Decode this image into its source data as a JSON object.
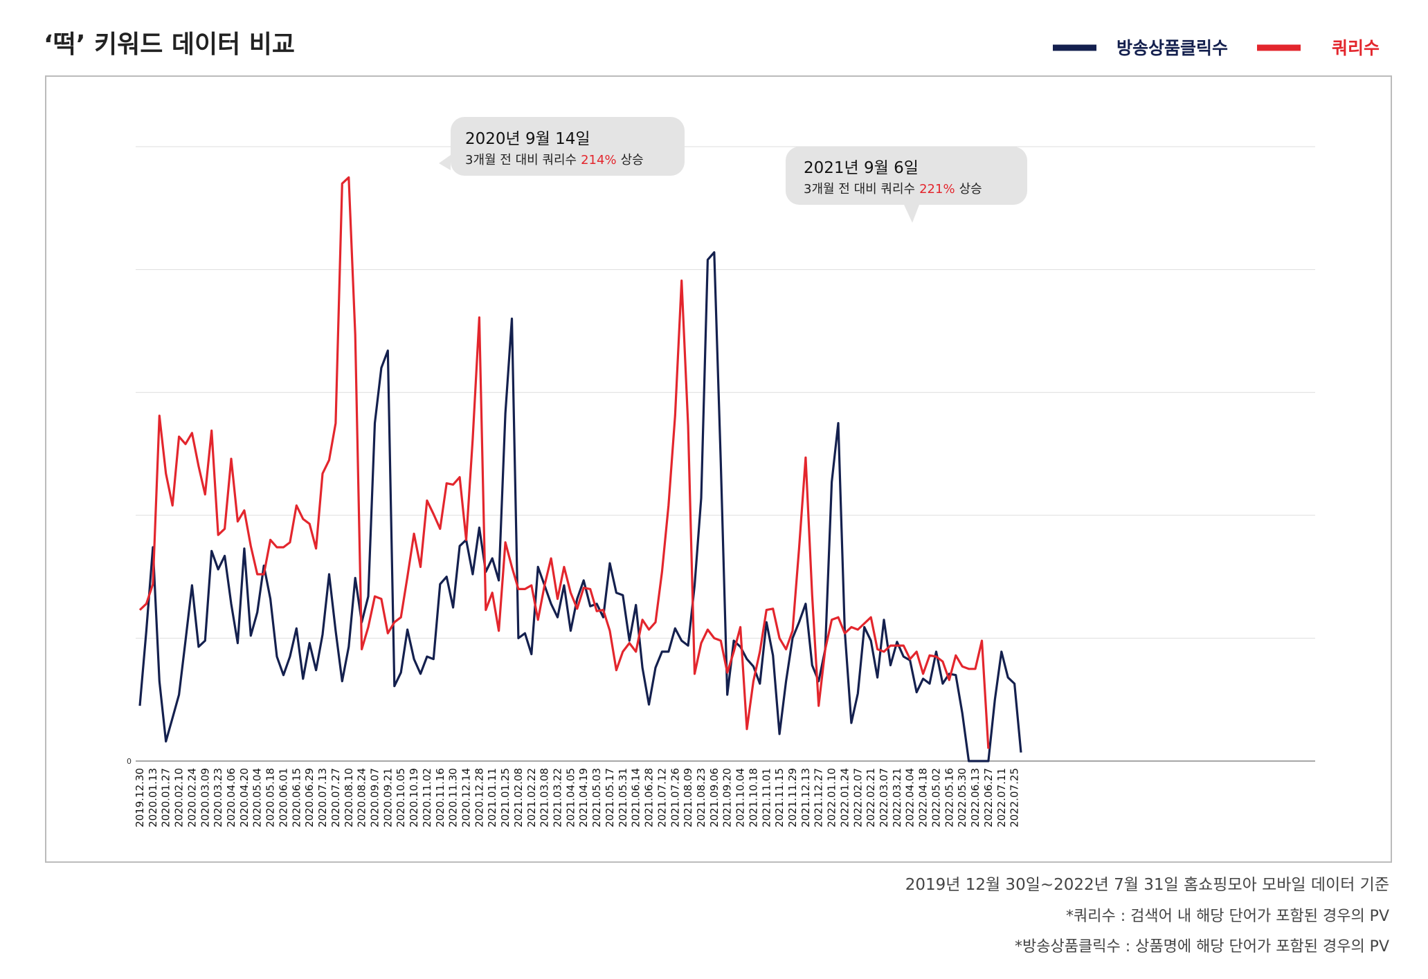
{
  "chart_data": {
    "type": "line",
    "title": "‘떡’ 키워드 데이터 비교",
    "categories": [
      "2019.12.30",
      null,
      "2020.01.13",
      null,
      "2020.01.27",
      null,
      "2020.02.10",
      null,
      "2020.02.24",
      null,
      "2020.03.09",
      null,
      "2020.03.23",
      null,
      "2020.04.06",
      null,
      "2020.04.20",
      null,
      "2020.05.04",
      null,
      "2020.05.18",
      null,
      "2020.06.01",
      null,
      "2020.06.15",
      null,
      "2020.06.29",
      null,
      "2020.07.13",
      null,
      "2020.07.27",
      null,
      "2020.08.10",
      null,
      "2020.08.24",
      null,
      "2020.09.07",
      null,
      "2020.09.21",
      null,
      "2020.10.05",
      null,
      "2020.10.19",
      null,
      "2020.11.02",
      null,
      "2020.11.16",
      null,
      "2020.11.30",
      null,
      "2020.12.14",
      null,
      "2020.12.28",
      null,
      "2021.01.11",
      null,
      "2021.01.25",
      null,
      "2021.02.08",
      null,
      "2021.02.22",
      null,
      "2021.03.08",
      null,
      "2021.03.22",
      null,
      "2021.04.05",
      null,
      "2021.04.19",
      null,
      "2021.05.03",
      null,
      "2021.05.17",
      null,
      "2021.05.31",
      null,
      "2021.06.14",
      null,
      "2021.06.28",
      null,
      "2021.07.12",
      null,
      "2021.07.26",
      null,
      "2021.08.09",
      null,
      "2021.08.23",
      null,
      "2021.09.06",
      null,
      "2021.09.20",
      null,
      "2021.10.04",
      null,
      "2021.10.18",
      null,
      "2021.11.01",
      null,
      "2021.11.15",
      null,
      "2021.11.29",
      null,
      "2021.12.13",
      null,
      "2021.12.27",
      null,
      "2022.01.10",
      null,
      "2022.01.24",
      null,
      "2022.02.07",
      null,
      "2022.02.21",
      null,
      "2022.03.07",
      null,
      "2022.03.21",
      null,
      "2022.04.04",
      null,
      "2022.04.18",
      null,
      "2022.05.02",
      null,
      "2022.05.16",
      null,
      "2022.05.30",
      null,
      "2022.06.13",
      null,
      "2022.06.27",
      null,
      "2022.07.11",
      null,
      "2022.07.25",
      null
    ],
    "series": [
      {
        "name": "방송상품클릭수",
        "color": "#14204e",
        "values": [
          0.45,
          1.06,
          1.74,
          0.65,
          0.16,
          0.35,
          0.54,
          0.98,
          1.43,
          0.93,
          0.98,
          1.71,
          1.56,
          1.67,
          1.28,
          0.96,
          1.73,
          1.02,
          1.21,
          1.59,
          1.32,
          0.85,
          0.7,
          0.85,
          1.08,
          0.67,
          0.96,
          0.74,
          1.03,
          1.52,
          1.06,
          0.65,
          0.93,
          1.49,
          1.13,
          1.34,
          2.75,
          3.2,
          3.34,
          0.61,
          0.72,
          1.07,
          0.83,
          0.71,
          0.85,
          0.83,
          1.44,
          1.5,
          1.25,
          1.75,
          1.8,
          1.52,
          1.9,
          1.54,
          1.65,
          1.47,
          2.83,
          3.6,
          1.0,
          1.04,
          0.87,
          1.58,
          1.43,
          1.28,
          1.17,
          1.43,
          1.06,
          1.32,
          1.47,
          1.26,
          1.28,
          1.17,
          1.61,
          1.37,
          1.35,
          0.98,
          1.27,
          0.76,
          0.46,
          0.76,
          0.89,
          0.89,
          1.08,
          0.98,
          0.94,
          1.43,
          2.14,
          4.08,
          4.14,
          2.43,
          0.54,
          0.98,
          0.93,
          0.83,
          0.77,
          0.63,
          1.13,
          0.86,
          0.22,
          0.65,
          1.0,
          1.13,
          1.28,
          0.78,
          0.65,
          0.91,
          2.27,
          2.75,
          1.06,
          0.31,
          0.55,
          1.09,
          0.98,
          0.68,
          1.15,
          0.78,
          0.97,
          0.85,
          0.82,
          0.56,
          0.67,
          0.63,
          0.89,
          0.63,
          0.71,
          0.7,
          0.39,
          0,
          0,
          0,
          0,
          0.5,
          0.89,
          0.68,
          0.63,
          0.07
        ]
      },
      {
        "name": "쿼리수",
        "color": "#e3262d",
        "values": [
          1.23,
          1.28,
          1.44,
          2.81,
          2.34,
          2.08,
          2.64,
          2.58,
          2.67,
          2.4,
          2.17,
          2.69,
          1.84,
          1.89,
          2.46,
          1.95,
          2.04,
          1.75,
          1.52,
          1.52,
          1.8,
          1.74,
          1.74,
          1.78,
          2.08,
          1.97,
          1.93,
          1.73,
          2.34,
          2.45,
          2.75,
          4.7,
          4.75,
          3.47,
          0.91,
          1.09,
          1.34,
          1.32,
          1.04,
          1.13,
          1.17,
          1.5,
          1.85,
          1.58,
          2.12,
          2.01,
          1.89,
          2.26,
          2.25,
          2.31,
          1.8,
          2.62,
          3.61,
          1.23,
          1.37,
          1.06,
          1.78,
          1.58,
          1.4,
          1.4,
          1.43,
          1.15,
          1.43,
          1.65,
          1.32,
          1.58,
          1.37,
          1.24,
          1.41,
          1.4,
          1.22,
          1.23,
          1.06,
          0.74,
          0.89,
          0.96,
          0.89,
          1.15,
          1.07,
          1.13,
          1.54,
          2.08,
          2.81,
          3.91,
          2.73,
          0.71,
          0.96,
          1.07,
          1.0,
          0.98,
          0.72,
          0.89,
          1.09,
          0.26,
          0.65,
          0.89,
          1.23,
          1.24,
          1.0,
          0.91,
          1.06,
          1.73,
          2.47,
          1.35,
          0.45,
          0.91,
          1.15,
          1.17,
          1.04,
          1.09,
          1.07,
          1.12,
          1.17,
          0.91,
          0.89,
          0.94,
          0.94,
          0.94,
          0.83,
          0.89,
          0.71,
          0.86,
          0.85,
          0.81,
          0.66,
          0.86,
          0.77,
          0.75,
          0.75,
          0.98,
          0.1,
          null,
          null,
          null,
          null,
          null
        ]
      }
    ],
    "ylim": [
      0,
      5
    ],
    "yticks": [
      0
    ],
    "ygrid": [
      0,
      1,
      2,
      3,
      4,
      5
    ],
    "annotations": [
      {
        "date": "2020년 9월 14일",
        "text": "3개월 전 대비 쿼리수",
        "highlight": "214%",
        "suffix": "상승"
      },
      {
        "date": "2021년 9월 6일",
        "text": "3개월 전 대비 쿼리수",
        "highlight": "221%",
        "suffix": "상승"
      }
    ],
    "footnotes": [
      "2019년 12월 30일~2022년 7월 31일 홈쇼핑모아 모바일 데이터 기준",
      "*쿼리수 : 검색어 내 해당 단어가 포함된 경우의 PV",
      "*방송상품클릭수 : 상품명에 해당 단어가 포함된 경우의 PV"
    ]
  }
}
